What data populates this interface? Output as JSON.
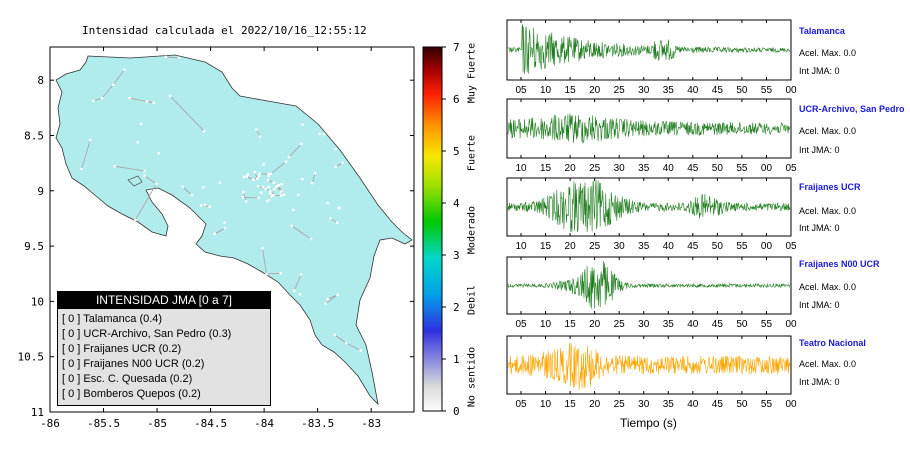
{
  "map": {
    "title": "Intensidad calculada el 2022/10/16_12:55:12",
    "lon_ticks": [
      "-86",
      "-85.5",
      "-85",
      "-84.5",
      "-84",
      "-83.5",
      "-83"
    ],
    "lat_ticks": [
      "11",
      "10.5",
      "10",
      "9.5",
      "9",
      "8.5",
      "8"
    ],
    "land_color": "#b0ecec"
  },
  "colorbar": {
    "ticks": [
      "0",
      "1",
      "2",
      "3",
      "4",
      "5",
      "6",
      "7"
    ],
    "labels": [
      "No sentido",
      "Debil",
      "Moderado",
      "Fuerte",
      "Muy Fuerte"
    ]
  },
  "legend": {
    "title": "INTENSIDAD JMA [0 a 7]",
    "items": [
      {
        "jma": "[ 0 ]",
        "label": "Talamanca (0.4)"
      },
      {
        "jma": "[ 0 ]",
        "label": "UCR-Archivo, San Pedro (0.3)"
      },
      {
        "jma": "[ 0 ]",
        "label": "Fraijanes UCR (0.2)"
      },
      {
        "jma": "[ 0 ]",
        "label": "Fraijanes N00 UCR (0.2)"
      },
      {
        "jma": "[ 0 ]",
        "label": "Esc. C. Quesada (0.2)"
      },
      {
        "jma": "[ 0 ]",
        "label": "Bomberos Quepos (0.2)"
      }
    ]
  },
  "waveforms": {
    "xlabel": "Tiempo (s)",
    "stations": [
      {
        "name": "Talamanca",
        "acel": "Acel. Max. 0.0",
        "jma": "Int JMA: 0",
        "color": "#1e7d1e",
        "ticks": [
          "05",
          "10",
          "15",
          "20",
          "25",
          "30",
          "35",
          "40",
          "45",
          "50",
          "55",
          "00"
        ]
      },
      {
        "name": "UCR-Archivo, San Pedro",
        "acel": "Acel. Max. 0.0",
        "jma": "Int JMA: 0",
        "color": "#1e7d1e",
        "ticks": [
          "10",
          "15",
          "20",
          "25",
          "30",
          "35",
          "40",
          "45",
          "50",
          "55",
          "00",
          "05"
        ]
      },
      {
        "name": "Fraijanes UCR",
        "acel": "Acel. Max. 0.0",
        "jma": "Int JMA: 0",
        "color": "#1e7d1e",
        "ticks": [
          "10",
          "15",
          "20",
          "25",
          "30",
          "35",
          "40",
          "45",
          "50",
          "55",
          "00",
          "05"
        ]
      },
      {
        "name": "Fraijanes N00 UCR",
        "acel": "Acel. Max. 0.0",
        "jma": "Int JMA: 0",
        "color": "#1e7d1e",
        "ticks": [
          "05",
          "10",
          "15",
          "20",
          "25",
          "30",
          "35",
          "40",
          "45",
          "50",
          "55",
          "00"
        ]
      },
      {
        "name": "Teatro Nacional",
        "acel": "Acel. Max. 0.0",
        "jma": "Int JMA: 0",
        "color": "#ffa500",
        "ticks": [
          "05",
          "10",
          "15",
          "20",
          "25",
          "30",
          "35",
          "40",
          "45",
          "50",
          "55",
          "00"
        ]
      }
    ]
  },
  "chart_data": [
    {
      "type": "heatmap",
      "title": "Intensidad calculada el 2022/10/16_12:55:12",
      "xlabel": "",
      "ylabel": "",
      "xlim": [
        -86,
        -82.6
      ],
      "ylim": [
        8,
        11.3
      ],
      "x_ticks": [
        -86,
        -85.5,
        -85,
        -84.5,
        -84,
        -83.5,
        -83
      ],
      "y_ticks": [
        8,
        8.5,
        9,
        9.5,
        10,
        10.5,
        11
      ],
      "intensity_range": [
        0,
        7
      ],
      "uniform_intensity": 0,
      "colorbar_ticks": [
        0,
        1,
        2,
        3,
        4,
        5,
        6,
        7
      ],
      "colorbar_labels": [
        "No sentido",
        "Debil",
        "Moderado",
        "Fuerte",
        "Muy Fuerte"
      ],
      "grid": false
    },
    {
      "type": "line",
      "title": "",
      "xlabel": "Tiempo (s)",
      "ylabel": "",
      "series": [
        {
          "name": "Talamanca",
          "acel_max": 0.0,
          "int_jma": 0
        },
        {
          "name": "UCR-Archivo, San Pedro",
          "acel_max": 0.0,
          "int_jma": 0
        },
        {
          "name": "Fraijanes UCR",
          "acel_max": 0.0,
          "int_jma": 0
        },
        {
          "name": "Fraijanes N00 UCR",
          "acel_max": 0.0,
          "int_jma": 0
        },
        {
          "name": "Teatro Nacional",
          "acel_max": 0.0,
          "int_jma": 0
        }
      ]
    }
  ]
}
